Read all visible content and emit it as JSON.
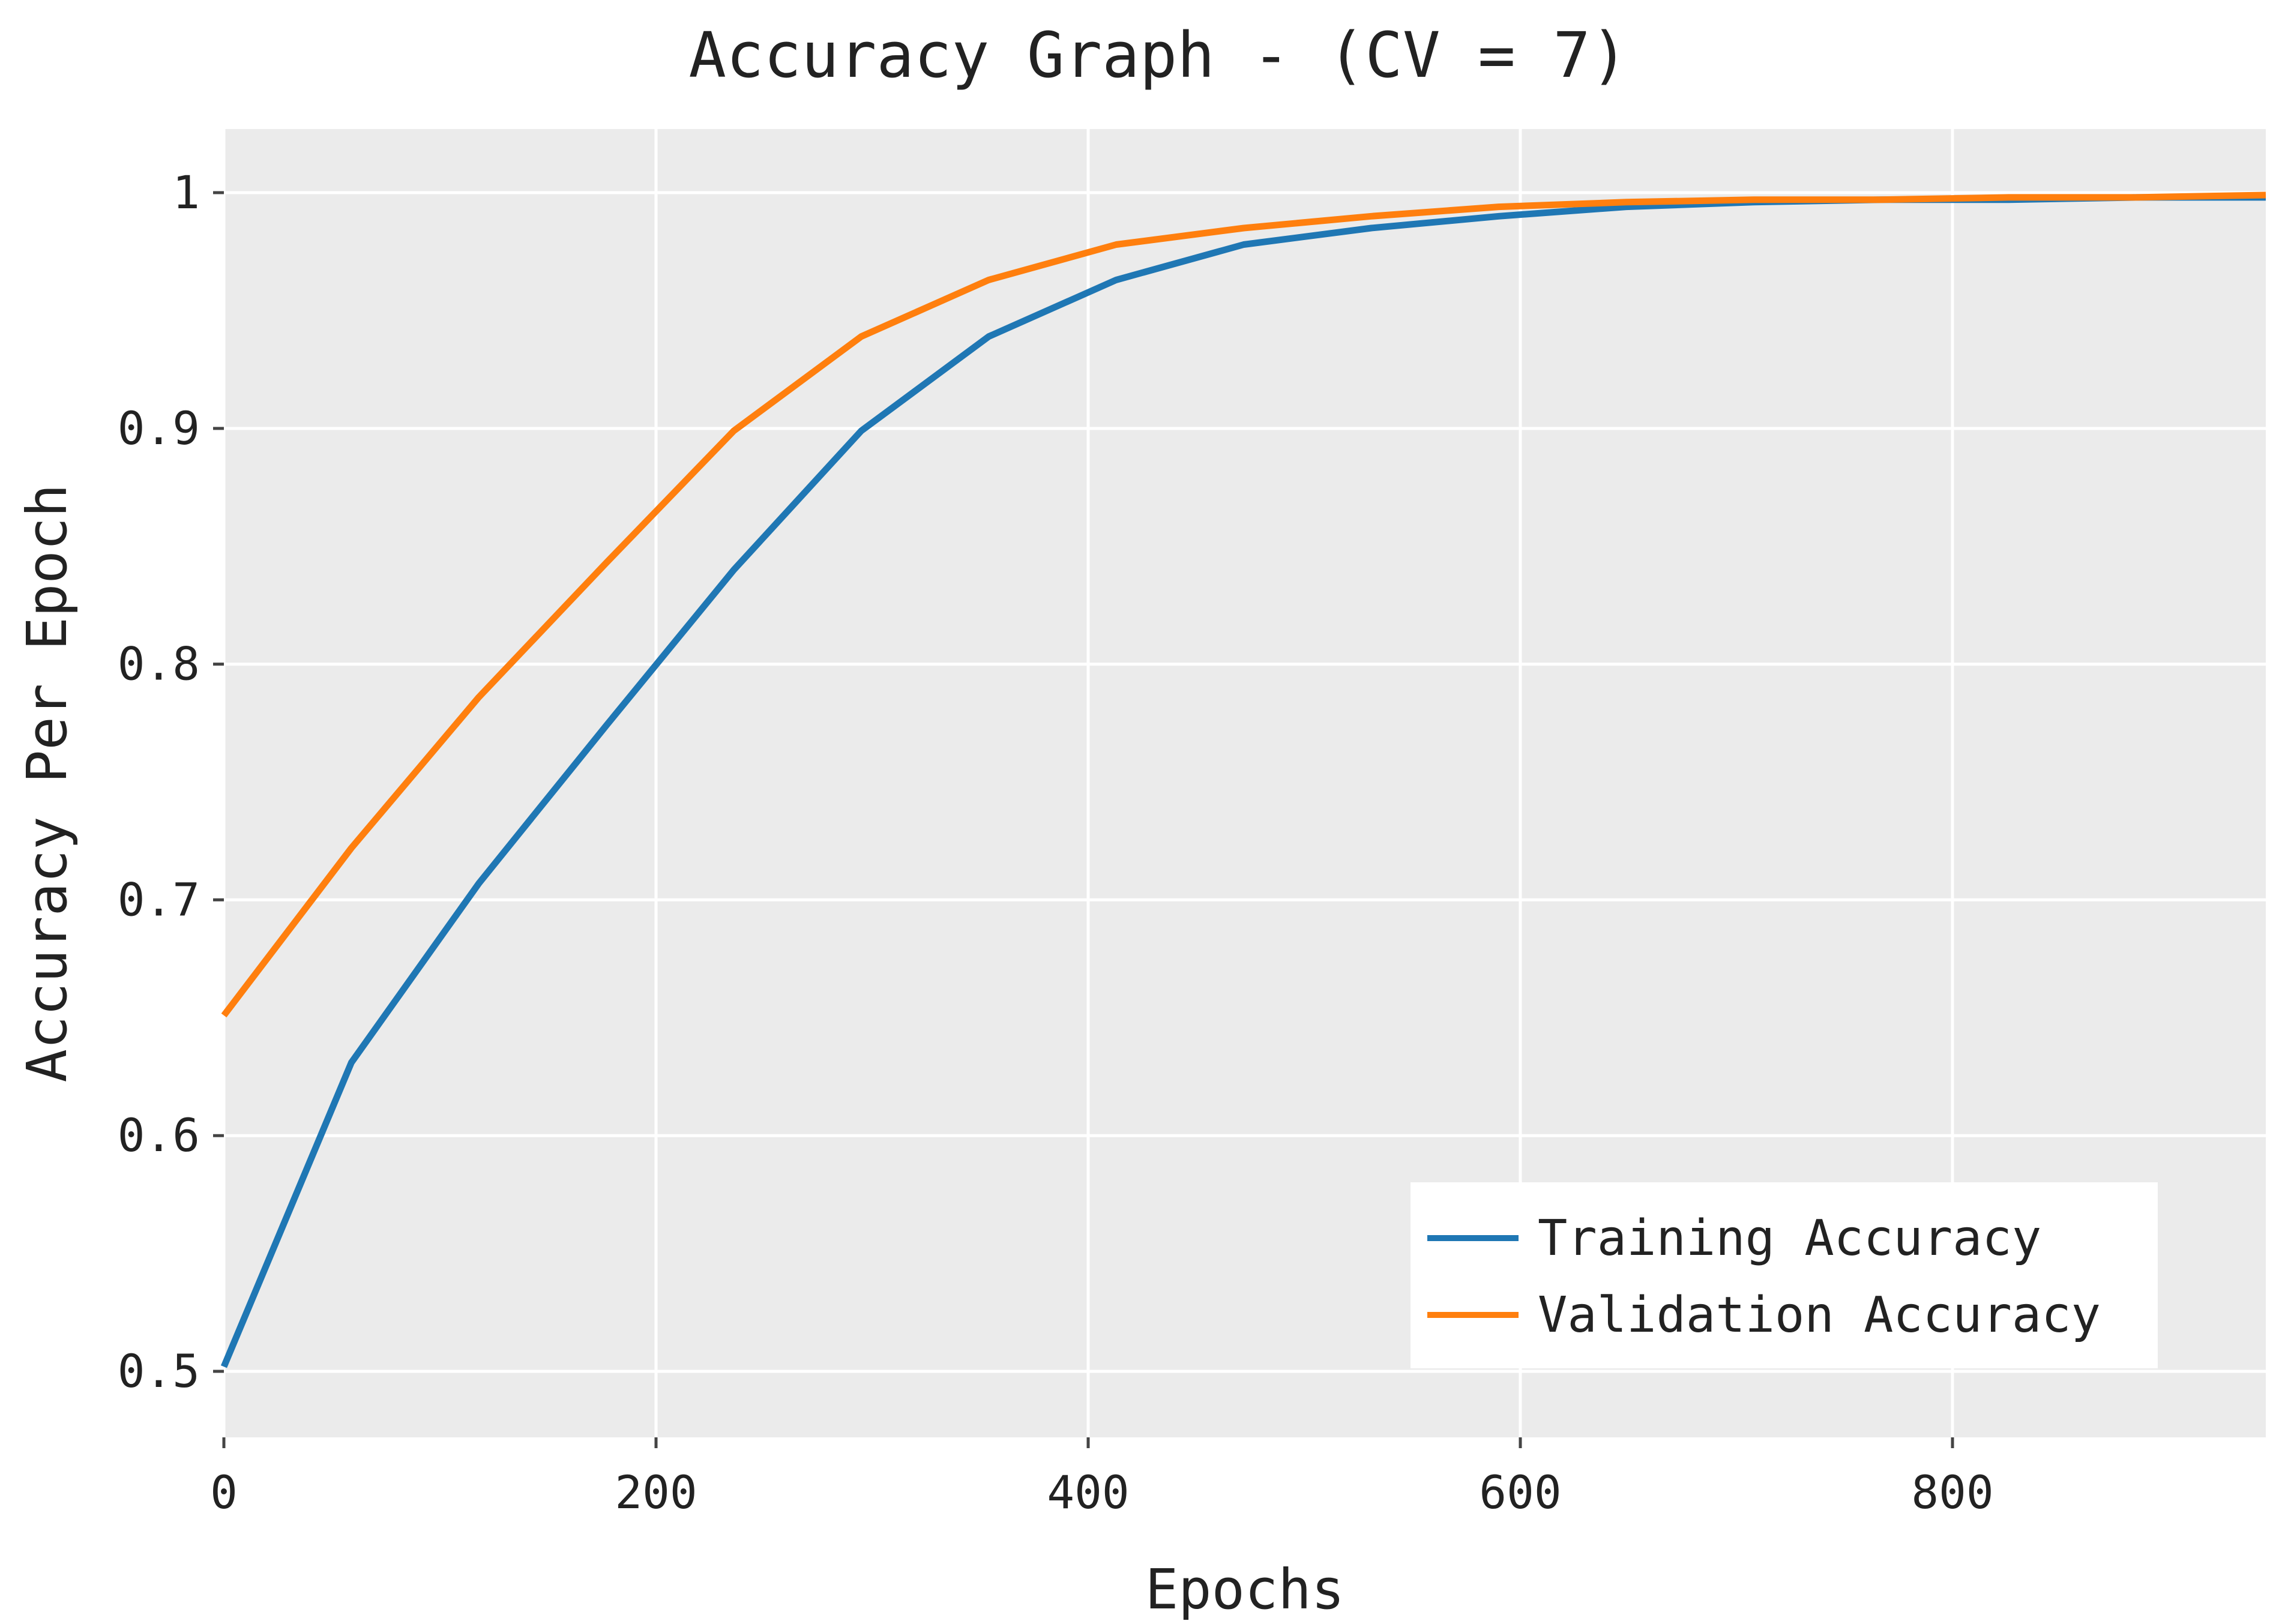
{
  "chart_data": {
    "type": "line",
    "title": "Accuracy Graph - (CV = 7)",
    "xlabel": "Epochs",
    "ylabel": "Accuracy Per Epoch",
    "xlim": [
      0,
      945
    ],
    "ylim": [
      0.472,
      1.027
    ],
    "x_ticks": [
      0,
      200,
      400,
      600,
      800
    ],
    "y_ticks": [
      0.5,
      0.6,
      0.7,
      0.8,
      0.9,
      1
    ],
    "x_tick_labels": [
      "0",
      "200",
      "400",
      "600",
      "800"
    ],
    "y_tick_labels": [
      "0.5",
      "0.6",
      "0.7",
      "0.8",
      "0.9",
      "1"
    ],
    "grid": true,
    "background": "#ebebeb",
    "grid_color": "#ffffff",
    "legend_position": "bottom-right",
    "series": [
      {
        "name": "Training Accuracy",
        "color": "#1f77b4",
        "x": [
          0,
          59,
          118,
          177,
          236,
          295,
          354,
          413,
          472,
          531,
          590,
          649,
          708,
          767,
          826,
          885,
          945
        ],
        "values": [
          0.502,
          0.631,
          0.707,
          0.774,
          0.84,
          0.899,
          0.939,
          0.963,
          0.978,
          0.985,
          0.99,
          0.994,
          0.996,
          0.997,
          0.997,
          0.998,
          0.998
        ]
      },
      {
        "name": "Validation Accuracy",
        "color": "#ff7f0e",
        "x": [
          0,
          59,
          118,
          177,
          236,
          295,
          354,
          413,
          472,
          531,
          590,
          649,
          708,
          767,
          826,
          885,
          945
        ],
        "values": [
          0.651,
          0.722,
          0.786,
          0.843,
          0.899,
          0.939,
          0.963,
          0.978,
          0.985,
          0.99,
          0.994,
          0.996,
          0.997,
          0.997,
          0.998,
          0.998,
          0.999
        ]
      }
    ]
  }
}
